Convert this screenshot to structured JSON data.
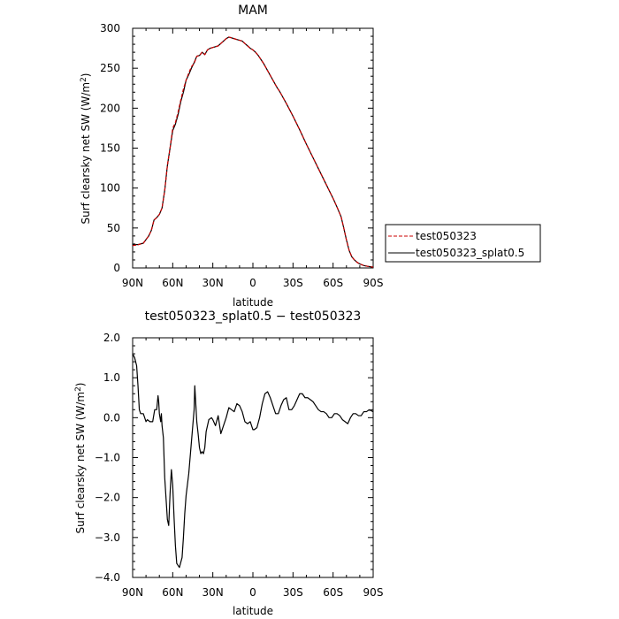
{
  "chart_data": [
    {
      "type": "line",
      "title": "MAM",
      "xlabel": "latitude",
      "ylabel": "Surf clearsky net SW (W/m²)",
      "ylabel_main": "Surf clearsky net SW (W/m",
      "ylabel_sup": "2",
      "ylabel_end": ")",
      "xlim": [
        90,
        -90
      ],
      "ylim": [
        0,
        300
      ],
      "x_ticks": [
        {
          "value": 90,
          "label": "90N"
        },
        {
          "value": 60,
          "label": "60N"
        },
        {
          "value": 30,
          "label": "30N"
        },
        {
          "value": 0,
          "label": "0"
        },
        {
          "value": -30,
          "label": "30S"
        },
        {
          "value": -60,
          "label": "60S"
        },
        {
          "value": -90,
          "label": "90S"
        }
      ],
      "y_ticks": [
        {
          "value": 0,
          "label": "0"
        },
        {
          "value": 50,
          "label": "50"
        },
        {
          "value": 100,
          "label": "100"
        },
        {
          "value": 150,
          "label": "150"
        },
        {
          "value": 200,
          "label": "200"
        },
        {
          "value": 250,
          "label": "250"
        },
        {
          "value": 300,
          "label": "300"
        }
      ],
      "legend": "right",
      "series": [
        {
          "name": "test050323",
          "color": "#cc0000",
          "dash": true,
          "x": [
            90,
            86,
            82,
            78,
            76,
            74,
            72,
            70,
            68,
            66,
            64,
            62,
            60,
            58,
            56,
            54,
            52,
            50,
            48,
            46,
            44,
            42,
            40,
            38,
            36,
            34,
            32,
            30,
            28,
            26,
            24,
            22,
            20,
            18,
            16,
            14,
            12,
            10,
            8,
            6,
            4,
            2,
            0,
            -2,
            -4,
            -6,
            -8,
            -10,
            -12,
            -14,
            -16,
            -18,
            -20,
            -25,
            -30,
            -35,
            -40,
            -45,
            -50,
            -55,
            -60,
            -63,
            -66,
            -68,
            -70,
            -72,
            -74,
            -76,
            -78,
            -80,
            -83,
            -86,
            -90
          ],
          "values": [
            28,
            29,
            31,
            40,
            47,
            60,
            63,
            67,
            75,
            97,
            128,
            150,
            175,
            182,
            195,
            210,
            224,
            235,
            244,
            252,
            256,
            265,
            266,
            270,
            267,
            273,
            275,
            276,
            277,
            278,
            281,
            284,
            287,
            289,
            288,
            287,
            286,
            285,
            284,
            281,
            278,
            275,
            273,
            270,
            266,
            261,
            256,
            250,
            244,
            238,
            232,
            226,
            221,
            206,
            190,
            173,
            155,
            138,
            121,
            104,
            87,
            76,
            64,
            50,
            35,
            22,
            14,
            10,
            7,
            5,
            3,
            2,
            1
          ]
        },
        {
          "name": "test050323_splat0.5",
          "color": "#000000",
          "dash": false,
          "x": [
            90,
            86,
            82,
            78,
            76,
            74,
            72,
            70,
            68,
            66,
            64,
            62,
            60,
            58,
            56,
            54,
            52,
            50,
            48,
            46,
            44,
            42,
            40,
            38,
            36,
            34,
            32,
            30,
            28,
            26,
            24,
            22,
            20,
            18,
            16,
            14,
            12,
            10,
            8,
            6,
            4,
            2,
            0,
            -2,
            -4,
            -6,
            -8,
            -10,
            -12,
            -14,
            -16,
            -18,
            -20,
            -25,
            -30,
            -35,
            -40,
            -45,
            -50,
            -55,
            -60,
            -63,
            -66,
            -68,
            -70,
            -72,
            -74,
            -76,
            -78,
            -80,
            -83,
            -86,
            -90
          ],
          "values": [
            29.5,
            29.2,
            31,
            40,
            47,
            60,
            63,
            67,
            75,
            97,
            128,
            150,
            172,
            180,
            192,
            208,
            220,
            235,
            242,
            250,
            257,
            265,
            266,
            270,
            267,
            273,
            275,
            276,
            277,
            278,
            281,
            284,
            287,
            289,
            288,
            287,
            286,
            285,
            284,
            281,
            278,
            275,
            273,
            270,
            266,
            261,
            256,
            250,
            244,
            238,
            232,
            226,
            221,
            206,
            190,
            173,
            155,
            138,
            121,
            104,
            87,
            76,
            64,
            50,
            35,
            22,
            14,
            10,
            7,
            5,
            3,
            2,
            1
          ]
        }
      ]
    },
    {
      "type": "line",
      "title": "test050323_splat0.5 − test050323",
      "xlabel": "latitude",
      "ylabel": "Surf clearsky net SW (W/m²)",
      "ylabel_main": "Surf clearsky net SW (W/m",
      "ylabel_sup": "2",
      "ylabel_end": ")",
      "xlim": [
        90,
        -90
      ],
      "ylim": [
        -4.0,
        2.0
      ],
      "x_ticks": [
        {
          "value": 90,
          "label": "90N"
        },
        {
          "value": 60,
          "label": "60N"
        },
        {
          "value": 30,
          "label": "30N"
        },
        {
          "value": 0,
          "label": "0"
        },
        {
          "value": -30,
          "label": "30S"
        },
        {
          "value": -60,
          "label": "60S"
        },
        {
          "value": -90,
          "label": "90S"
        }
      ],
      "y_ticks": [
        {
          "value": -4.0,
          "label": "−4.0"
        },
        {
          "value": -3.0,
          "label": "−3.0"
        },
        {
          "value": -2.0,
          "label": "−2.0"
        },
        {
          "value": -1.0,
          "label": "−1.0"
        },
        {
          "value": 0.0,
          "label": "0.0"
        },
        {
          "value": 1.0,
          "label": "1.0"
        },
        {
          "value": 2.0,
          "label": "2.0"
        }
      ],
      "series": [
        {
          "color": "#000000",
          "dash": false,
          "x": [
            90,
            88.5,
            87,
            86,
            85,
            84,
            82,
            80,
            79,
            77,
            75,
            73.5,
            72,
            71,
            70.5,
            70,
            69,
            68.5,
            68,
            67,
            66,
            64,
            63,
            62,
            61,
            60,
            59,
            58,
            57,
            55,
            53,
            52,
            51,
            50,
            48,
            46,
            45,
            44,
            43.5,
            43,
            42,
            41,
            40,
            39,
            38,
            37,
            36,
            35,
            33,
            31,
            30,
            28,
            26,
            24,
            22,
            21,
            20,
            18,
            16,
            14,
            13,
            12,
            10,
            8,
            6,
            4,
            2,
            0,
            -1,
            -3,
            -5,
            -7,
            -9,
            -11,
            -13,
            -15,
            -17,
            -19,
            -21,
            -23,
            -25,
            -27,
            -29,
            -31,
            -33,
            -35,
            -37,
            -39,
            -41,
            -43,
            -45,
            -47,
            -49,
            -51,
            -53,
            -55,
            -57,
            -59,
            -61,
            -63,
            -65,
            -67,
            -69,
            -71,
            -73,
            -75,
            -77,
            -79,
            -81,
            -83,
            -85,
            -87,
            -90
          ],
          "values": [
            1.6,
            1.5,
            1.3,
            0.8,
            0.2,
            0.1,
            0.1,
            -0.1,
            -0.05,
            -0.1,
            -0.1,
            0.2,
            0.2,
            0.55,
            0.4,
            0.1,
            -0.1,
            0.1,
            -0.2,
            -0.5,
            -1.5,
            -2.55,
            -2.7,
            -1.9,
            -1.3,
            -1.7,
            -2.5,
            -3.2,
            -3.65,
            -3.75,
            -3.5,
            -3.0,
            -2.4,
            -1.95,
            -1.4,
            -0.6,
            -0.2,
            0.2,
            0.8,
            0.5,
            -0.1,
            -0.4,
            -0.75,
            -0.9,
            -0.85,
            -0.9,
            -0.75,
            -0.35,
            -0.05,
            0.0,
            -0.05,
            -0.2,
            0.05,
            -0.4,
            -0.2,
            -0.1,
            0.0,
            0.25,
            0.2,
            0.15,
            0.25,
            0.35,
            0.3,
            0.15,
            -0.1,
            -0.15,
            -0.1,
            -0.3,
            -0.3,
            -0.25,
            0.0,
            0.35,
            0.6,
            0.65,
            0.5,
            0.3,
            0.1,
            0.1,
            0.3,
            0.45,
            0.5,
            0.2,
            0.2,
            0.3,
            0.45,
            0.6,
            0.6,
            0.5,
            0.5,
            0.45,
            0.4,
            0.3,
            0.2,
            0.15,
            0.15,
            0.1,
            0.0,
            0.0,
            0.1,
            0.1,
            0.05,
            -0.05,
            -0.1,
            -0.15,
            0.0,
            0.1,
            0.1,
            0.05,
            0.05,
            0.15,
            0.15,
            0.2,
            0.15
          ]
        }
      ]
    }
  ]
}
